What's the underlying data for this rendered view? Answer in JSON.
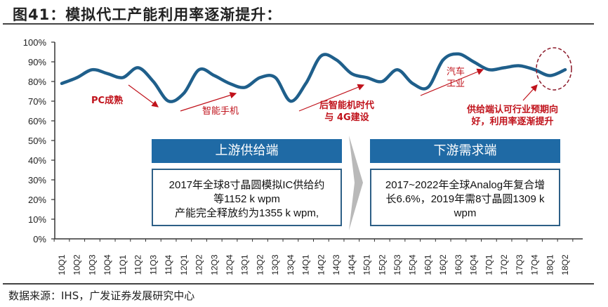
{
  "title": "图41：模拟代工产能利用率逐渐提升：",
  "source": "数据来源：IHS，广发证券发展研究中心",
  "chart_data": {
    "type": "line",
    "categories": [
      "10Q1",
      "10Q2",
      "10Q3",
      "10Q4",
      "11Q1",
      "11Q2",
      "11Q3",
      "11Q4",
      "12Q1",
      "12Q2",
      "12Q3",
      "12Q4",
      "13Q1",
      "13Q2",
      "13Q3",
      "13Q4",
      "14Q1",
      "14Q2",
      "14Q3",
      "14Q4",
      "15Q1",
      "15Q2",
      "15Q3",
      "15Q4",
      "16Q1",
      "16Q2",
      "16Q3",
      "16Q4",
      "17Q1",
      "17Q2",
      "17Q3",
      "17Q4",
      "18Q1",
      "18Q2"
    ],
    "values": [
      79,
      82,
      86,
      84,
      82,
      87,
      80,
      70,
      74,
      86,
      83,
      79,
      77,
      82,
      82,
      70,
      79,
      93,
      91,
      84,
      82,
      80,
      86,
      79,
      77,
      91,
      94,
      90,
      86,
      87,
      88,
      86,
      83,
      86
    ],
    "yticks": [
      "0%",
      "10%",
      "20%",
      "30%",
      "40%",
      "50%",
      "60%",
      "70%",
      "80%",
      "90%",
      "100%"
    ],
    "ylim": [
      0,
      100
    ],
    "line_color": "#1f5f8b",
    "annotation_color": "#c0121b",
    "annotations": {
      "pc": "PC成熟",
      "smartphone": "智能手机",
      "post_smart_1": "后智能机时代",
      "post_smart_2": "与 4G建设",
      "auto_1": "汽车",
      "auto_2": "工业",
      "supply_1": "供给端认可行业预期向",
      "supply_2": "好，利用率逐渐提升"
    }
  },
  "panels": {
    "upstream": {
      "header": "上游供给端",
      "lines": [
        "2017年全球8寸晶圆模拟IC供给约",
        "等1152 k wpm",
        "产能完全释放约为1355 k wpm,"
      ]
    },
    "downstream": {
      "header": "下游需求端",
      "lines": [
        "2017~2022年全球Analog年复合增",
        "长6.6%，2019年需8寸晶圆1309 k",
        "wpm"
      ]
    }
  }
}
